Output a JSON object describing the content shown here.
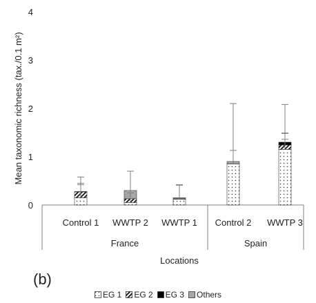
{
  "chart_data": {
    "type": "bar",
    "stacked": true,
    "ylabel": "Mean taxonomic  richness (tax./0.1 m²)",
    "xlabel": "Locations",
    "yticks": [
      "0",
      "1",
      "2",
      "3",
      "4"
    ],
    "ylim": [
      0,
      4
    ],
    "categories": [
      "Control 1",
      "WWTP 2",
      "WWTP 1",
      "Control 2",
      "WWTP 3"
    ],
    "groups": [
      {
        "name": "France",
        "members": [
          "Control 1",
          "WWTP 2",
          "WWTP 1"
        ]
      },
      {
        "name": "Spain",
        "members": [
          "Control 2",
          "WWTP 3"
        ]
      }
    ],
    "series": [
      {
        "name": "EG 1",
        "values": [
          0.15,
          0.05,
          0.12,
          0.85,
          1.15
        ],
        "error": [
          0.3,
          0.25,
          0.3,
          0.28,
          0.34
        ],
        "fill": "dots",
        "color": "#ffffff"
      },
      {
        "name": "EG 2",
        "values": [
          0.12,
          0.08,
          0.01,
          0.0,
          0.09
        ],
        "error": [
          0.15,
          0.12,
          0.0,
          0.0,
          0.12
        ],
        "fill": "hatch",
        "color": "#ffffff"
      },
      {
        "name": "EG 3",
        "values": [
          0.0,
          0.0,
          0.0,
          0.0,
          0.06
        ],
        "error": [
          0,
          0,
          0,
          0,
          0.18
        ],
        "fill": "solid",
        "color": "#000000"
      },
      {
        "name": "Others",
        "values": [
          0.01,
          0.17,
          0.02,
          0.05,
          0.0
        ],
        "error": [
          0.3,
          0.4,
          0.26,
          1.2,
          0.78
        ],
        "fill": "solid",
        "color": "#a6a6a6"
      }
    ],
    "grid": false,
    "legend_position": "bottom"
  },
  "panel_label": "(b)"
}
